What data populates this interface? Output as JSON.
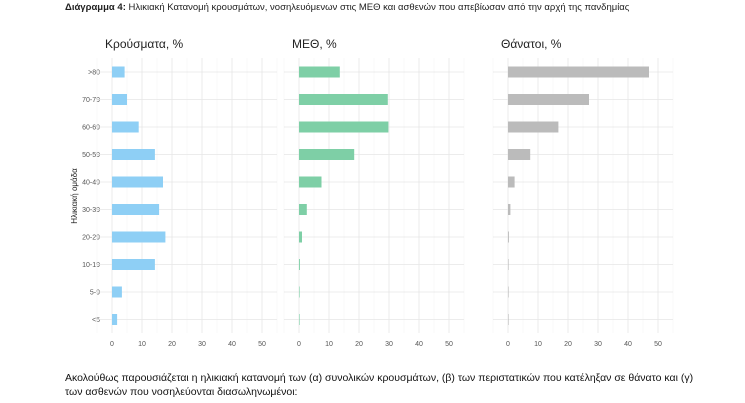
{
  "caption": {
    "label": "Διάγραμμα 4",
    "text": "Ηλικιακή Κατανομή κρουσμάτων, νοσηλευόμενων στις ΜΕΘ και ασθενών που απεβίωσαν από την αρχή της πανδημίας"
  },
  "footer": {
    "text": "Ακολούθως παρουσιάζεται η ηλικιακή κατανομή των (α) συνολικών κρουσμάτων, (β) των περιστατικών που κατέληξαν σε θάνατο και (γ) των ασθενών που νοσηλεύονται διασωληνωμένοι:"
  },
  "chart_data": {
    "type": "bar",
    "orientation": "horizontal",
    "ylabel": "Ηλικιακή ομάδα",
    "categories": [
      ">80",
      "70-79",
      "60-69",
      "50-59",
      "40-49",
      "30-39",
      "20-29",
      "10-19",
      "5-9",
      "<5"
    ],
    "xlim": [
      0,
      50
    ],
    "xticks": [
      0,
      10,
      20,
      30,
      40,
      50
    ],
    "grid": true,
    "panels": [
      {
        "title": "Κρούσματα, %",
        "color": "#8ecff5",
        "values": [
          4.2,
          5.0,
          8.9,
          14.3,
          17.0,
          15.7,
          17.8,
          14.3,
          3.3,
          1.7
        ]
      },
      {
        "title": "ΜΕΘ, %",
        "color": "#7ecfa6",
        "values": [
          13.6,
          29.6,
          29.8,
          18.4,
          7.5,
          2.6,
          1.0,
          0.3,
          0.1,
          0.2
        ]
      },
      {
        "title": "Θάνατοι, %",
        "color": "#bbbbbb",
        "values": [
          47.0,
          27.0,
          16.8,
          7.4,
          2.2,
          0.8,
          0.3,
          0.1,
          0.0,
          0.1
        ]
      }
    ]
  }
}
